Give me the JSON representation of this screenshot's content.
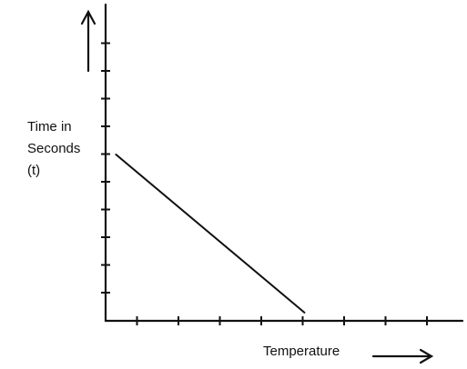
{
  "chart_data": {
    "type": "line",
    "title": "",
    "xlabel": "Temperature",
    "ylabel_lines": [
      "Time in",
      "Seconds",
      "(t)"
    ],
    "x_ticks": 8,
    "y_ticks": 10,
    "grid": false,
    "legend": "none",
    "series": [
      {
        "points": [
          {
            "x": 0.25,
            "y": 6.0
          },
          {
            "x": 4.8,
            "y": 0.3
          }
        ]
      }
    ],
    "xlim": [
      0,
      9
    ],
    "ylim": [
      0,
      11
    ]
  }
}
